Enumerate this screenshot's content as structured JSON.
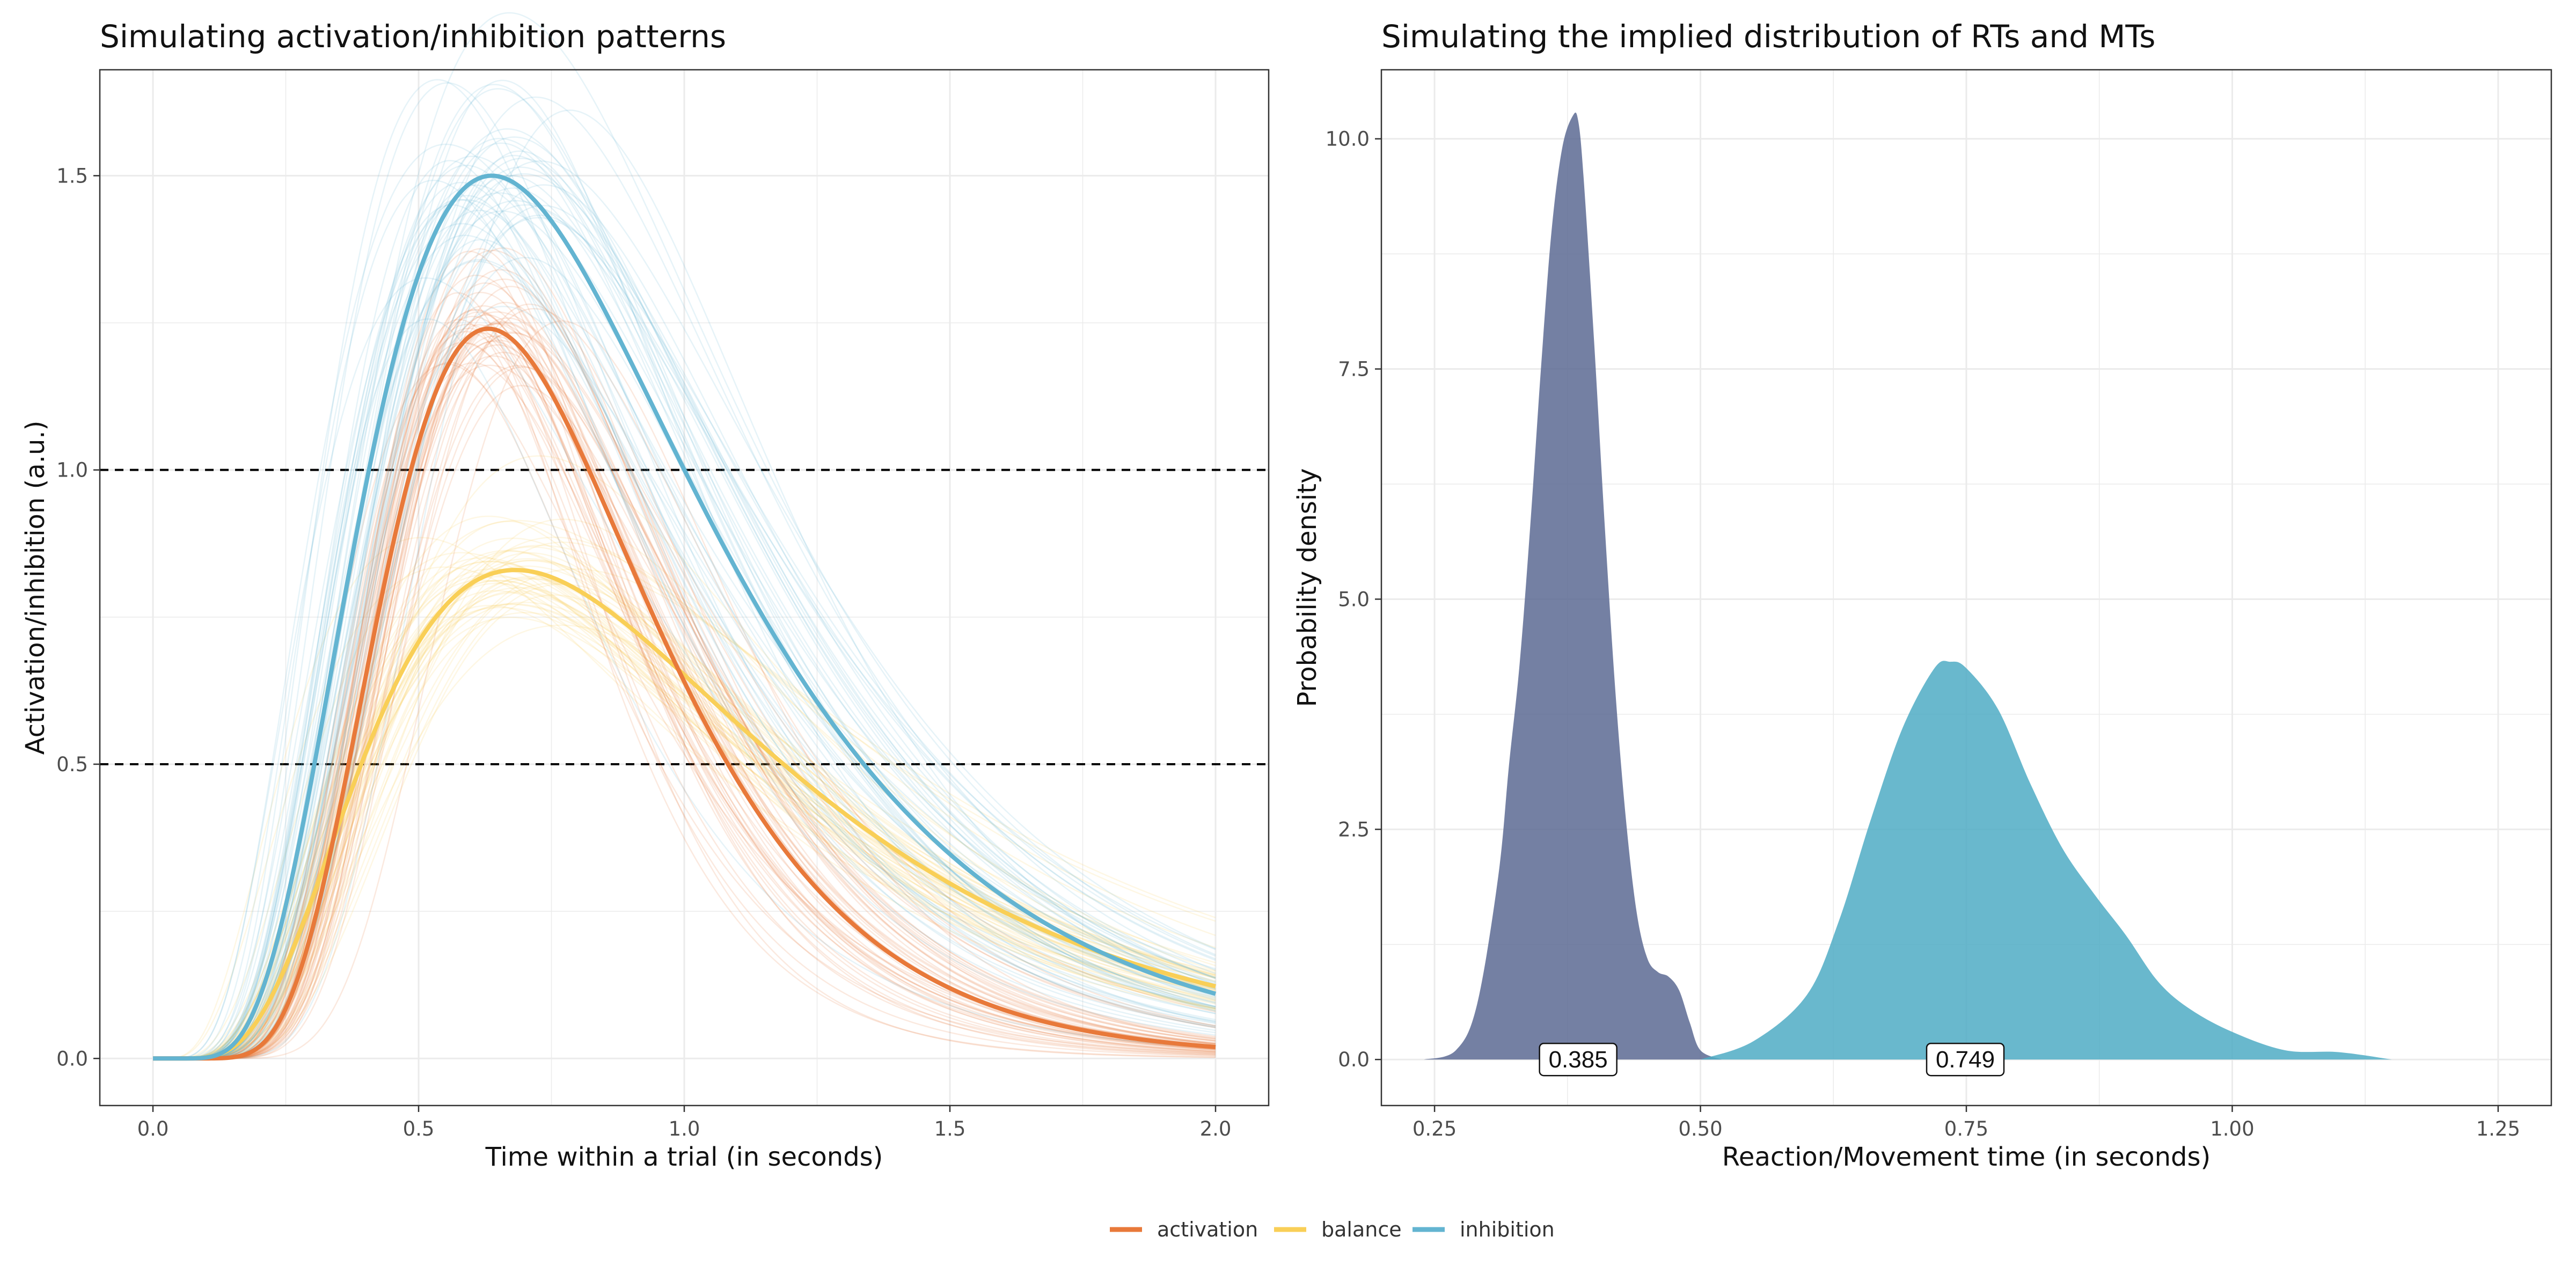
{
  "colors": {
    "activation": "#E8793A",
    "balance": "#F9CF57",
    "inhibition": "#63B4D1",
    "rt_density": "#5C6A93",
    "mt_density": "#4FACC4",
    "grid": "#EBEBEB",
    "panel_border": "#333333",
    "threshold_line": "#000000"
  },
  "chart_data": [
    {
      "type": "line",
      "title": "Simulating activation/inhibition patterns",
      "xlabel": "Time within a trial (in seconds)",
      "ylabel": "Activation/inhibition (a.u.)",
      "xlim": [
        -0.1,
        2.1
      ],
      "ylim": [
        -0.08,
        1.68
      ],
      "x_ticks": [
        0,
        0.5,
        1,
        1.5,
        2
      ],
      "x_tick_labels": [
        "0.0",
        "0.5",
        "1.0",
        "1.5",
        "2.0"
      ],
      "y_ticks": [
        0,
        0.5,
        1,
        1.5
      ],
      "y_tick_labels": [
        "0.0",
        "0.5",
        "1.0",
        "1.5"
      ],
      "grid": true,
      "thresholds": [
        0.5,
        1.0
      ],
      "series": [
        {
          "name": "activation",
          "model": "lognormal-pdf-scaled",
          "amplitude": 1.24,
          "mu": -0.3,
          "sigma": 0.4,
          "onset": 0.0,
          "simulated_traces": 50
        },
        {
          "name": "balance",
          "model": "lognormal-pdf-scaled",
          "amplitude": 0.83,
          "mu": -0.08,
          "sigma": 0.55,
          "onset": 0.0,
          "simulated_traces": 50
        },
        {
          "name": "inhibition",
          "model": "lognormal-pdf-scaled",
          "amplitude": 1.5,
          "mu": -0.2,
          "sigma": 0.5,
          "onset": 0.0,
          "simulated_traces": 50
        }
      ]
    },
    {
      "type": "area",
      "title": "Simulating the implied distribution of RTs and MTs",
      "xlabel": "Reaction/Movement time (in seconds)",
      "ylabel": "Probability density",
      "xlim": [
        0.2,
        1.3
      ],
      "ylim": [
        -0.5,
        10.75
      ],
      "x_ticks": [
        0.25,
        0.5,
        0.75,
        1.0,
        1.25
      ],
      "x_tick_labels": [
        "0.25",
        "0.50",
        "0.75",
        "1.00",
        "1.25"
      ],
      "y_ticks": [
        0,
        2.5,
        5,
        7.5,
        10
      ],
      "y_tick_labels": [
        "0.0",
        "2.5",
        "5.0",
        "7.5",
        "10.0"
      ],
      "grid": true,
      "series": [
        {
          "name": "RT",
          "x": [
            0.24,
            0.27,
            0.29,
            0.31,
            0.32,
            0.33,
            0.34,
            0.35,
            0.36,
            0.37,
            0.38,
            0.385,
            0.39,
            0.4,
            0.41,
            0.42,
            0.43,
            0.44,
            0.45,
            0.46,
            0.47,
            0.48,
            0.49,
            0.5,
            0.52
          ],
          "y": [
            0.0,
            0.1,
            0.6,
            2.0,
            3.2,
            4.3,
            5.8,
            7.5,
            9.0,
            9.9,
            10.25,
            10.2,
            9.6,
            7.8,
            5.8,
            4.0,
            2.6,
            1.6,
            1.1,
            0.95,
            0.9,
            0.75,
            0.4,
            0.1,
            0.0
          ],
          "mode_label": "0.385"
        },
        {
          "name": "MT",
          "x": [
            0.5,
            0.55,
            0.6,
            0.63,
            0.66,
            0.69,
            0.72,
            0.735,
            0.75,
            0.78,
            0.81,
            0.84,
            0.87,
            0.9,
            0.93,
            0.96,
            1.0,
            1.05,
            1.1,
            1.15
          ],
          "y": [
            0.0,
            0.2,
            0.7,
            1.5,
            2.6,
            3.6,
            4.25,
            4.32,
            4.25,
            3.8,
            3.0,
            2.3,
            1.8,
            1.35,
            0.85,
            0.55,
            0.3,
            0.1,
            0.08,
            0.0
          ],
          "mode_label": "0.749"
        }
      ]
    }
  ],
  "legend": {
    "position": "bottom",
    "items": [
      {
        "label": "activation",
        "color": "#E8793A"
      },
      {
        "label": "balance",
        "color": "#F9CF57"
      },
      {
        "label": "inhibition",
        "color": "#63B4D1"
      }
    ]
  }
}
